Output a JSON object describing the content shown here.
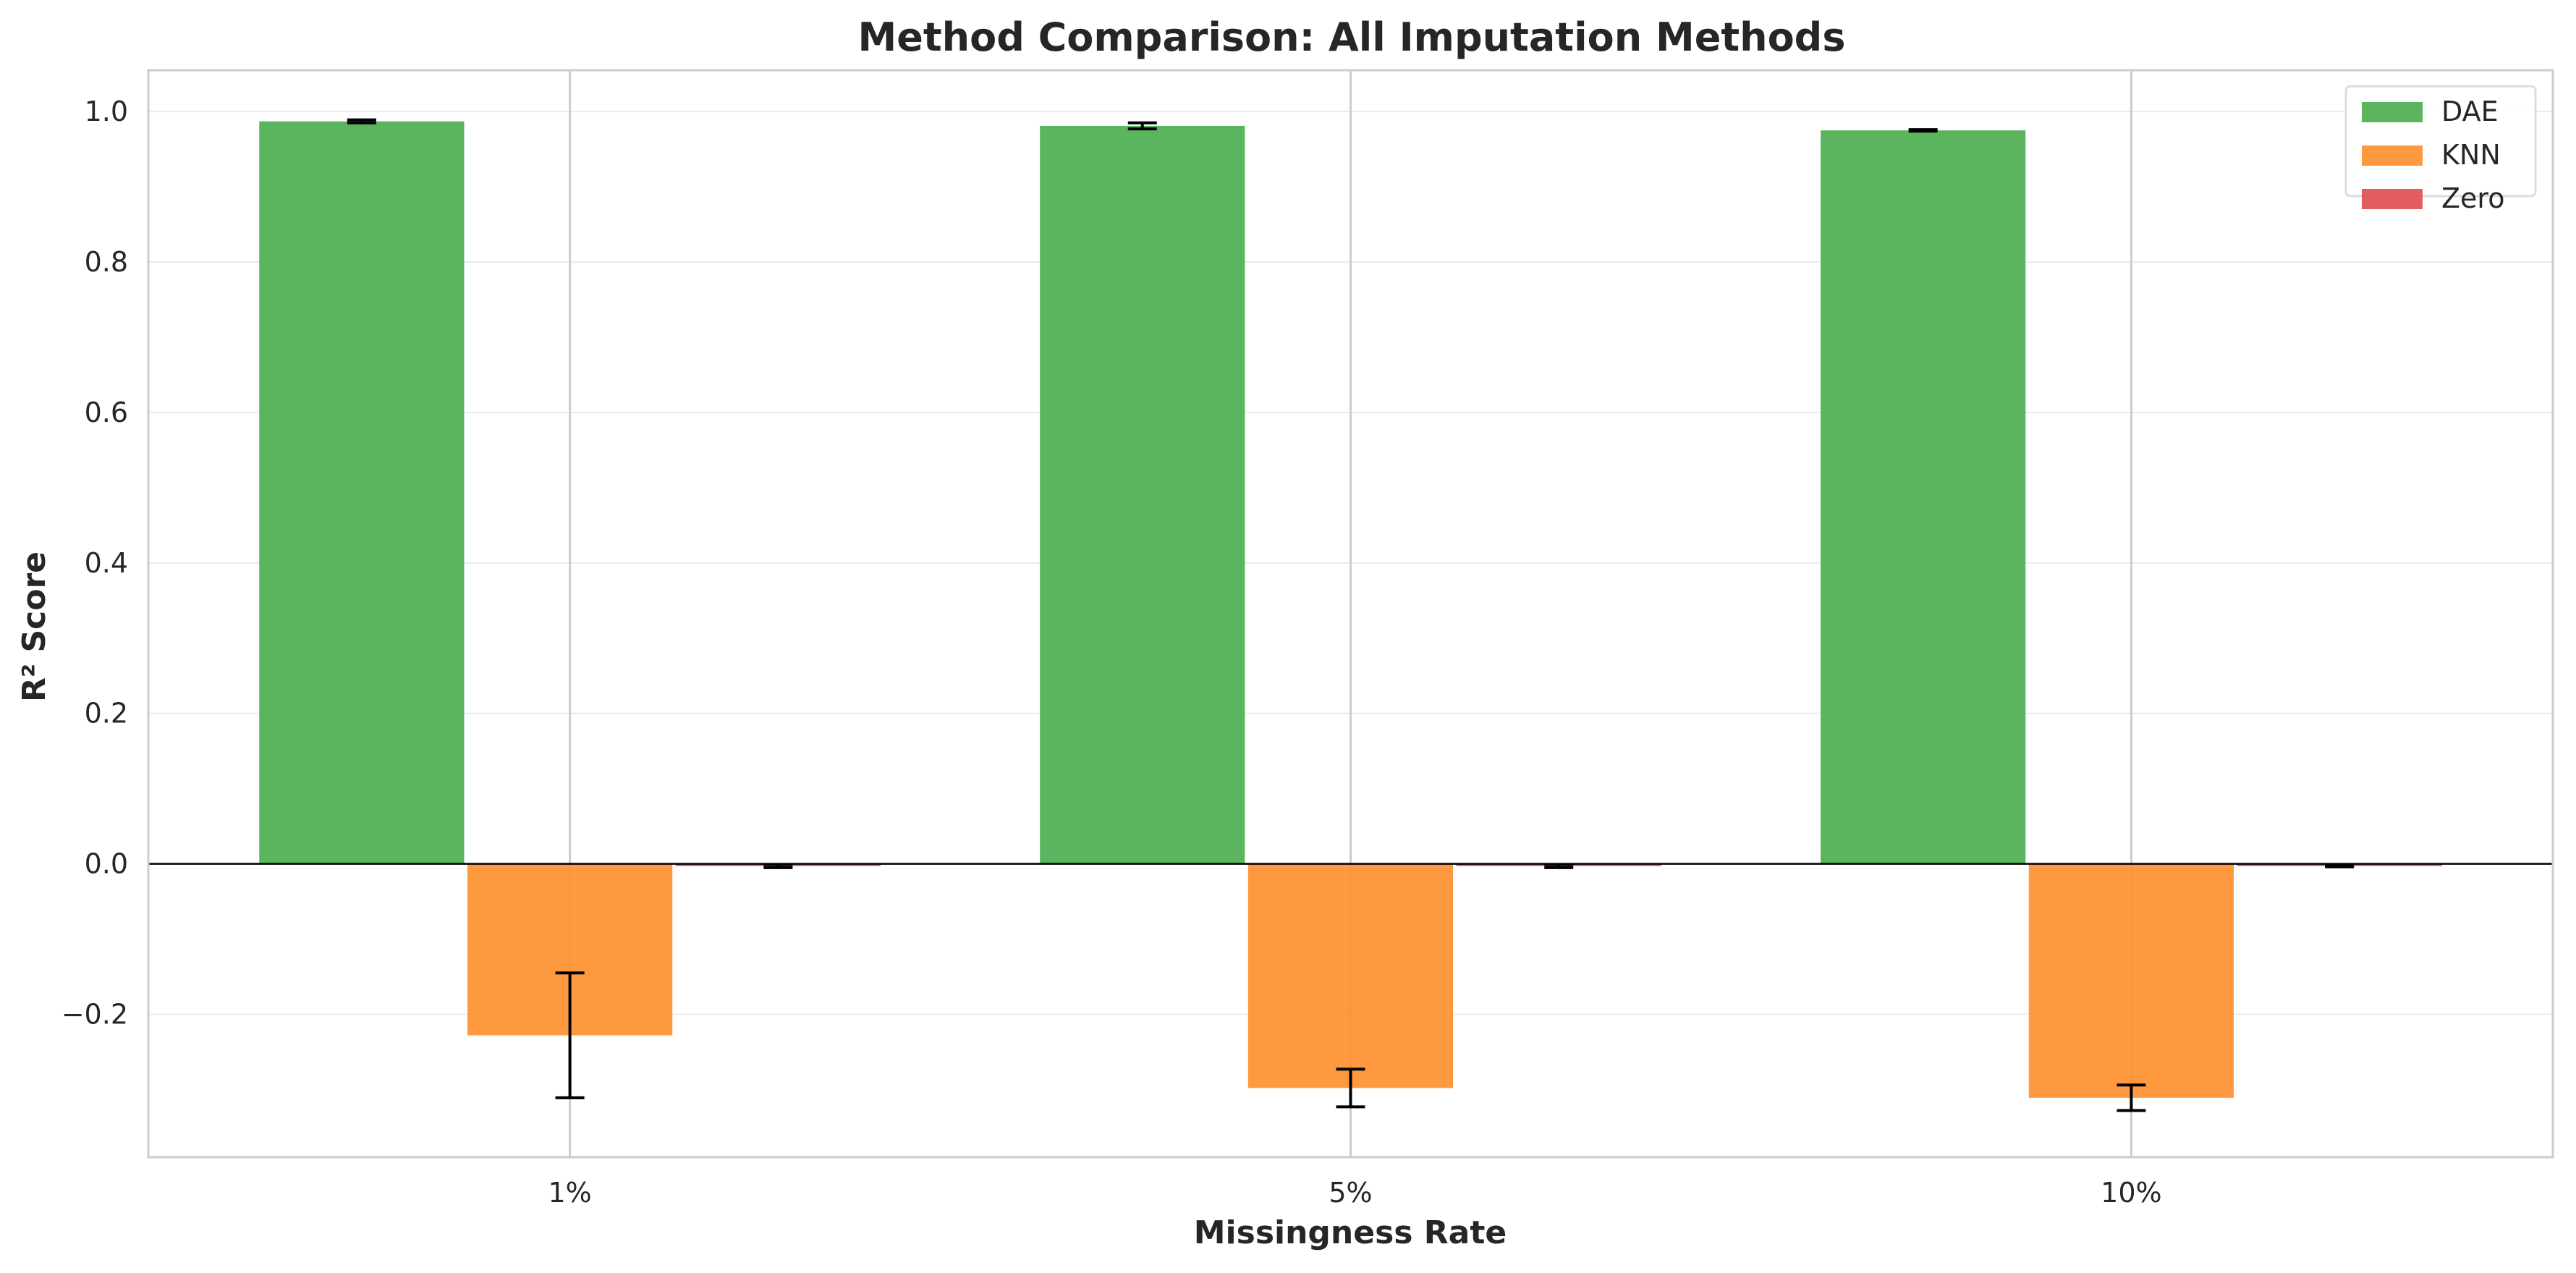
{
  "chart_data": {
    "type": "bar",
    "title": "Method Comparison: All Imputation Methods",
    "xlabel": "Missingness Rate",
    "ylabel": "R² Score",
    "categories": [
      "1%",
      "5%",
      "10%"
    ],
    "ylim": [
      -0.39,
      1.055
    ],
    "yticks": [
      -0.2,
      0.0,
      0.2,
      0.4,
      0.6,
      0.8,
      1.0
    ],
    "ytick_labels": [
      "−0.2",
      "0.0",
      "0.2",
      "0.4",
      "0.6",
      "0.8",
      "1.0"
    ],
    "grid": true,
    "legend_position": "top-right",
    "series": [
      {
        "name": "DAE",
        "color": "#4caf50",
        "values": [
          0.987,
          0.981,
          0.975
        ],
        "errors": [
          0.002,
          0.004,
          0.001
        ]
      },
      {
        "name": "KNN",
        "color": "#ff9030",
        "values": [
          -0.228,
          -0.298,
          -0.311
        ],
        "errors": [
          0.083,
          0.025,
          0.017
        ]
      },
      {
        "name": "Zero",
        "color": "#e05050",
        "values": [
          -0.003,
          -0.003,
          -0.003
        ],
        "errors": [
          0.002,
          0.002,
          0.001
        ]
      }
    ]
  }
}
